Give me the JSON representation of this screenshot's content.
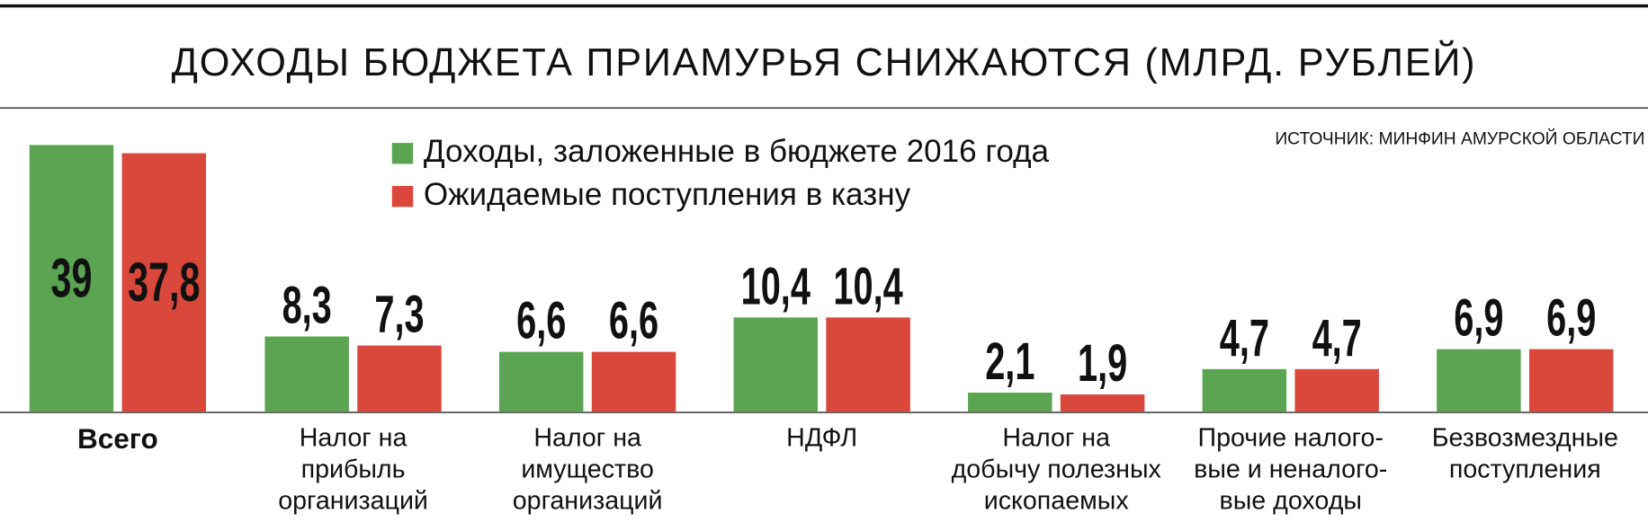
{
  "chart_data": [
    {
      "type": "bar",
      "title": "ДОХОДЫ БЮДЖЕТА ПРИАМУРЬЯ СНИЖАЮТСЯ (МЛРД. РУБЛЕЙ)",
      "source": "ИСТОЧНИК: МИНФИН АМУРСКОЙ ОБЛАСТИ",
      "categories": [
        "Всего"
      ],
      "series": [
        {
          "name": "Доходы, заложенные в бюджете 2016 года",
          "color": "#5ba552",
          "values": [
            39
          ],
          "value_labels": [
            "39"
          ]
        },
        {
          "name": "Ожидаемые поступления в казну",
          "color": "#d9483b",
          "values": [
            37.8
          ],
          "value_labels": [
            "37,8"
          ]
        }
      ],
      "ylim": [
        0,
        39
      ]
    },
    {
      "type": "bar",
      "categories": [
        "Налог на\nприбыль\nорганизаций",
        "Налог на\nимущество\nорганизаций",
        "НДФЛ",
        "Налог на\nдобычу полезных\nископаемых",
        "Прочие налого-\nвые и неналого-\nвые доходы",
        "Безвозмездные\nпоступления"
      ],
      "series": [
        {
          "color": "#5ba552",
          "values": [
            8.3,
            6.6,
            10.4,
            2.1,
            4.7,
            6.9
          ],
          "value_labels": [
            "8,3",
            "6,6",
            "10,4",
            "2,1",
            "4,7",
            "6,9"
          ]
        },
        {
          "color": "#d9483b",
          "values": [
            7.3,
            6.6,
            10.4,
            1.9,
            4.7,
            6.9
          ],
          "value_labels": [
            "7,3",
            "6,6",
            "10,4",
            "1,9",
            "4,7",
            "6,9"
          ]
        }
      ],
      "ylim": [
        0,
        16
      ]
    }
  ]
}
